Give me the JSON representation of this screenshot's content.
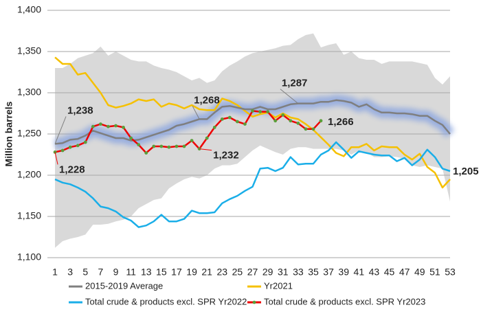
{
  "chart_data": {
    "type": "line",
    "y_label": "Million barrels",
    "xlim": [
      0,
      53
    ],
    "ylim": [
      1100,
      1400
    ],
    "xticks": [
      1,
      3,
      5,
      7,
      9,
      11,
      13,
      15,
      17,
      19,
      21,
      23,
      25,
      27,
      29,
      31,
      33,
      35,
      37,
      39,
      41,
      43,
      45,
      47,
      49,
      51,
      53
    ],
    "yticks": [
      {
        "value": 1100,
        "label": "1,100"
      },
      {
        "value": 1150,
        "label": "1,150"
      },
      {
        "value": 1200,
        "label": "1,200"
      },
      {
        "value": 1250,
        "label": "1,250"
      },
      {
        "value": 1300,
        "label": "1,300"
      },
      {
        "value": 1350,
        "label": "1,350"
      },
      {
        "value": 1400,
        "label": "1,400"
      }
    ],
    "grid": true,
    "x": [
      1,
      2,
      3,
      4,
      5,
      6,
      7,
      8,
      9,
      10,
      11,
      12,
      13,
      14,
      15,
      16,
      17,
      18,
      19,
      20,
      21,
      22,
      23,
      24,
      25,
      26,
      27,
      28,
      29,
      30,
      31,
      32,
      33,
      34,
      35,
      36,
      37,
      38,
      39,
      40,
      41,
      42,
      43,
      44,
      45,
      46,
      47,
      48,
      49,
      50,
      51,
      52,
      53
    ],
    "band": {
      "color": "#d9d9d9",
      "upper": [
        1330,
        1330,
        1335,
        1342,
        1345,
        1348,
        1356,
        1345,
        1350,
        1345,
        1340,
        1338,
        1338,
        1333,
        1330,
        1328,
        1325,
        1320,
        1315,
        1318,
        1312,
        1315,
        1326,
        1333,
        1338,
        1344,
        1348,
        1350,
        1352,
        1354,
        1357,
        1358,
        1365,
        1370,
        1372,
        1355,
        1358,
        1360,
        1346,
        1350,
        1342,
        1340,
        1340,
        1335,
        1338,
        1338,
        1338,
        1338,
        1336,
        1334,
        1318,
        1310,
        1320
      ],
      "lower": [
        1112,
        1120,
        1123,
        1125,
        1128,
        1140,
        1140,
        1141,
        1144,
        1146,
        1150,
        1160,
        1165,
        1170,
        1172,
        1184,
        1190,
        1195,
        1198,
        1196,
        1200,
        1208,
        1212,
        1212,
        1214,
        1222,
        1230,
        1236,
        1232,
        1228,
        1225,
        1232,
        1234,
        1234,
        1232,
        1232,
        1232,
        1232,
        1230,
        1225,
        1230,
        1228,
        1222,
        1222,
        1223,
        1222,
        1220,
        1212,
        1210,
        1212,
        1210,
        1208,
        1168
      ]
    },
    "series": [
      {
        "name": "2015-2019 Average",
        "color": "#7f7f7f",
        "glow": "#8fa8e0",
        "values": [
          1238,
          1239,
          1243,
          1244,
          1248,
          1254,
          1251,
          1248,
          1245,
          1245,
          1242,
          1243,
          1246,
          1249,
          1252,
          1255,
          1260,
          1262,
          1265,
          1268,
          1268,
          1276,
          1283,
          1284,
          1282,
          1280,
          1280,
          1283,
          1280,
          1280,
          1283,
          1286,
          1287,
          1287,
          1287,
          1289,
          1289,
          1291,
          1290,
          1288,
          1283,
          1286,
          1280,
          1276,
          1276,
          1275,
          1275,
          1274,
          1272,
          1272,
          1266,
          1261,
          1250
        ]
      },
      {
        "name": "Yr2021",
        "color": "#f5c000",
        "values": [
          1343,
          1335,
          1335,
          1322,
          1324,
          1312,
          1300,
          1285,
          1282,
          1284,
          1287,
          1292,
          1290,
          1292,
          1283,
          1287,
          1285,
          1281,
          1285,
          1280,
          1279,
          1279,
          1293,
          1290,
          1285,
          1278,
          1271,
          1274,
          1276,
          1270,
          1275,
          1270,
          1268,
          1262,
          1255,
          1246,
          1237,
          1227,
          1223,
          1234,
          1234,
          1238,
          1230,
          1235,
          1234,
          1234,
          1225,
          1219,
          1226,
          1210,
          1203,
          1185,
          1195
        ]
      },
      {
        "name": "Total crude & products excl. SPR Yr2022",
        "color": "#1aaee8",
        "values": [
          1195,
          1191,
          1189,
          1185,
          1180,
          1172,
          1162,
          1160,
          1156,
          1149,
          1145,
          1137,
          1139,
          1144,
          1152,
          1144,
          1144,
          1147,
          1157,
          1154,
          1154,
          1155,
          1166,
          1171,
          1175,
          1181,
          1186,
          1208,
          1209,
          1205,
          1209,
          1222,
          1213,
          1214,
          1214,
          1225,
          1230,
          1240,
          1231,
          1221,
          1229,
          1227,
          1225,
          1224,
          1224,
          1217,
          1221,
          1212,
          1219,
          1231,
          1222,
          1208,
          1205
        ]
      },
      {
        "name": "Total crude & products excl. SPR Yr2023",
        "color": "#ee0000",
        "marker_color": "#5a9e3a",
        "values": [
          1228,
          1230,
          1234,
          1236,
          1240,
          1259,
          1262,
          1259,
          1260,
          1258,
          1245,
          1237,
          1227,
          1235,
          1235,
          1234,
          1235,
          1235,
          1242,
          1232,
          1245,
          1258,
          1268,
          1270,
          1265,
          1262,
          1278,
          1277,
          1277,
          1266,
          1273,
          1266,
          1263,
          1256,
          1256,
          1266,
          null,
          null,
          null,
          null,
          null,
          null,
          null,
          null,
          null,
          null,
          null,
          null,
          null,
          null,
          null,
          null,
          null
        ]
      }
    ],
    "annotations": [
      {
        "text": "1,238",
        "x": 1,
        "y": 1238,
        "color": "#7f7f7f"
      },
      {
        "text": "1,268",
        "x": 20,
        "y": 1268,
        "color": "#7f7f7f"
      },
      {
        "text": "1,287",
        "x": 33,
        "y": 1287,
        "color": "#7f7f7f"
      },
      {
        "text": "1,228",
        "x": 1,
        "y": 1228,
        "color": "#ee0000"
      },
      {
        "text": "1,232",
        "x": 20,
        "y": 1232,
        "color": "#ee0000"
      },
      {
        "text": "1,266",
        "x": 36,
        "y": 1266,
        "color": "#ee0000"
      },
      {
        "text": "1,205",
        "x": 53,
        "y": 1205,
        "color": "#1aaee8"
      }
    ]
  }
}
